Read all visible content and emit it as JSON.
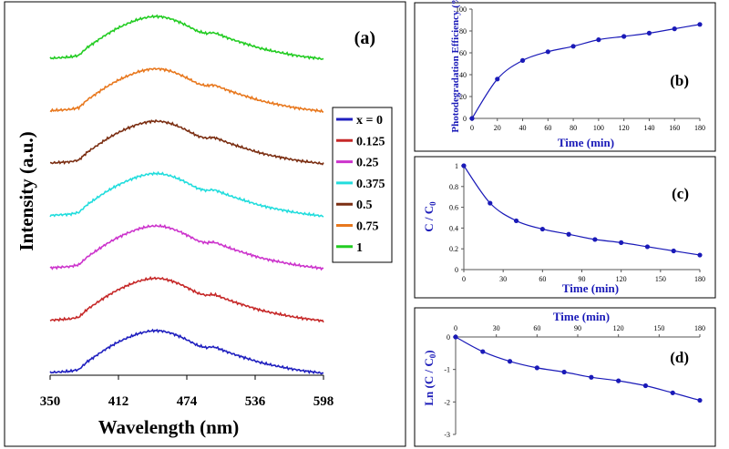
{
  "chart_data": [
    {
      "panel": "(a)",
      "type": "line",
      "xlabel": "Wavelength (nm)",
      "ylabel": "Intensity (a.u.)",
      "xticks": [
        "350",
        "412",
        "474",
        "536",
        "598"
      ],
      "xlim": [
        350,
        598
      ],
      "legend_placement": "right",
      "series": [
        {
          "name": "x = 0",
          "color": "#1f1fbf",
          "offset": 0
        },
        {
          "name": "0.125",
          "color": "#c62828",
          "offset": 1
        },
        {
          "name": "0.25",
          "color": "#cc33cc",
          "offset": 2
        },
        {
          "name": "0.375",
          "color": "#22dddd",
          "offset": 3
        },
        {
          "name": "0.5",
          "color": "#7b2e12",
          "offset": 4
        },
        {
          "name": "0.75",
          "color": "#e8781e",
          "offset": 5
        },
        {
          "name": "1",
          "color": "#22cc22",
          "offset": 6
        }
      ],
      "spectrum_profile": {
        "x": [
          350,
          368,
          376,
          384,
          392,
          400,
          410,
          420,
          430,
          440,
          446,
          452,
          460,
          468,
          476,
          484,
          492,
          496,
          500,
          506,
          512,
          520,
          530,
          540,
          550,
          560,
          570,
          580,
          590,
          598
        ],
        "y": [
          0.02,
          0.05,
          0.09,
          0.28,
          0.42,
          0.56,
          0.71,
          0.83,
          0.93,
          0.99,
          1.0,
          0.99,
          0.94,
          0.86,
          0.76,
          0.65,
          0.6,
          0.62,
          0.61,
          0.55,
          0.49,
          0.42,
          0.34,
          0.26,
          0.2,
          0.15,
          0.1,
          0.06,
          0.03,
          0.0
        ]
      }
    },
    {
      "panel": "(b)",
      "type": "line",
      "xlabel": "Time (min)",
      "ylabel": "Photodegradation Efficiency (%)",
      "xlim": [
        0,
        180
      ],
      "ylim": [
        0,
        100
      ],
      "xticks": [
        0,
        20,
        40,
        60,
        80,
        100,
        120,
        140,
        160,
        180
      ],
      "yticks": [
        0,
        20,
        40,
        60,
        80,
        100
      ],
      "color": "#1a1ab8",
      "x": [
        0,
        20,
        40,
        60,
        80,
        100,
        120,
        140,
        160,
        180
      ],
      "y": [
        0,
        36,
        53,
        61,
        66,
        72,
        75,
        78,
        82,
        86
      ]
    },
    {
      "panel": "(c)",
      "type": "line",
      "xlabel": "Time (min)",
      "ylabel": "C / C0",
      "xlim": [
        0,
        180
      ],
      "ylim": [
        0,
        1
      ],
      "xticks": [
        0,
        30,
        60,
        90,
        120,
        150,
        180
      ],
      "yticks": [
        "0",
        "0.2",
        "0.4",
        "0.6",
        "0.8",
        "1"
      ],
      "color": "#1a1ab8",
      "x": [
        0,
        20,
        40,
        60,
        80,
        100,
        120,
        140,
        160,
        180
      ],
      "y": [
        1.0,
        0.64,
        0.47,
        0.39,
        0.34,
        0.29,
        0.26,
        0.22,
        0.18,
        0.14
      ]
    },
    {
      "panel": "(d)",
      "type": "line",
      "xlabel": "Time (min)",
      "ylabel": "Ln (C / C0)",
      "xlim": [
        0,
        180
      ],
      "ylim": [
        -3,
        0
      ],
      "xticks": [
        0,
        30,
        60,
        90,
        120,
        150,
        180
      ],
      "yticks": [
        0,
        -1,
        -2,
        -3
      ],
      "color": "#1a1ab8",
      "x": [
        0,
        20,
        40,
        60,
        80,
        100,
        120,
        140,
        160,
        180
      ],
      "y": [
        0,
        -0.45,
        -0.75,
        -0.95,
        -1.08,
        -1.24,
        -1.35,
        -1.5,
        -1.72,
        -1.95
      ]
    }
  ]
}
